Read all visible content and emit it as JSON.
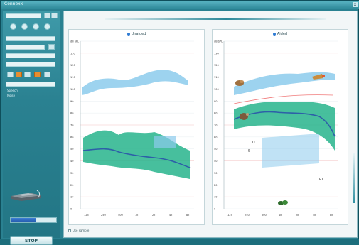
{
  "window": {
    "title": "Connexx",
    "close_label": "x"
  },
  "left_panel": {
    "option_a": "Speech",
    "option_b": "Noise",
    "progress_percent": 55,
    "stop_label": "STOP"
  },
  "slider": {
    "left_label": "",
    "mid_label": "",
    "right_label": ""
  },
  "left_chart": {
    "title": "Unaided",
    "y_ticks": [
      "dB SPL",
      "130",
      "120",
      "110",
      "100",
      "90",
      "80",
      "70",
      "60",
      "50",
      "40",
      "30",
      "20",
      "10",
      "0"
    ],
    "x_ticks": [
      "125",
      "250",
      "500",
      "1k",
      "2k",
      "4k",
      "8k"
    ],
    "upper_band_color": "#7ec3e8",
    "speech_band_color": "#26b189",
    "curve_color": "#2d5fa8"
  },
  "right_chart": {
    "title": "Aided",
    "y_ticks": [
      "dB SPL",
      "130",
      "120",
      "110",
      "100",
      "90",
      "80",
      "70",
      "60",
      "50",
      "40",
      "30",
      "20",
      "10",
      "0"
    ],
    "x_ticks": [
      "125",
      "250",
      "500",
      "1k",
      "2k",
      "4k",
      "8k"
    ],
    "markers": [
      "U",
      "S",
      "P1"
    ],
    "curve_color": "#2d5fa8"
  },
  "footer": {
    "checkbox_label": "Use sample"
  },
  "colors": {
    "accent": "#2a8191",
    "orange": "#e88d2f"
  }
}
